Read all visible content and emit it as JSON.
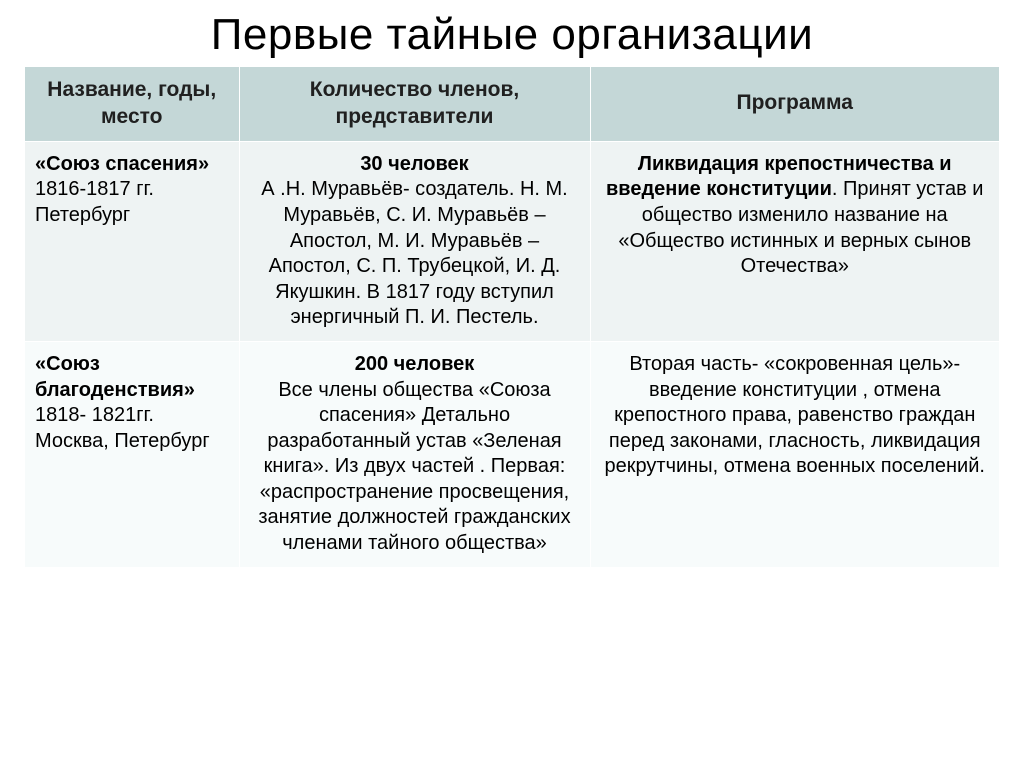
{
  "title": "Первые тайные организации",
  "table": {
    "headers": {
      "col1": "Название, годы, место",
      "col2": "Количество членов, представители",
      "col3": "Программа"
    },
    "rows": [
      {
        "name_bold": "«Союз спасения»",
        "name_rest": " 1816-1817 гг. Петербург",
        "members_bold": "30 человек",
        "members_rest": "А .Н. Муравьёв- создатель. Н. М. Муравьёв, С. И. Муравьёв – Апостол, М. И. Муравьёв –Апостол, С. П. Трубецкой, И. Д. Якушкин. В 1817 году вступил энергичный П. И. Пестель.",
        "program_bold": "Ликвидация крепостничества и введение конституции",
        "program_rest": ". Принят устав и общество изменило название на «Общество истинных и верных сынов Отечества»"
      },
      {
        "name_bold": "«Союз благоденствия»",
        "name_rest": " 1818- 1821гг. Москва, Петербург",
        "members_bold": "200 человек",
        "members_rest": "Все члены общества «Союза спасения» Детально разработанный устав «Зеленая книга». Из двух частей . Первая: «распространение просвещения, занятие должностей гражданских членами тайного общества»",
        "program_bold": "",
        "program_rest": "Вторая часть- «сокровенная цель»-введение конституции , отмена крепостного права, равенство граждан перед законами,  гласность, ликвидация рекрутчины, отмена военных  поселений."
      }
    ]
  },
  "colors": {
    "header_bg": "#c4d7d7",
    "row_a_bg": "#eef3f3",
    "row_b_bg": "#f7fbfb",
    "border": "#ffffff",
    "text": "#000000"
  },
  "typography": {
    "title_fontsize": 44,
    "header_fontsize": 21,
    "cell_fontsize": 20
  }
}
